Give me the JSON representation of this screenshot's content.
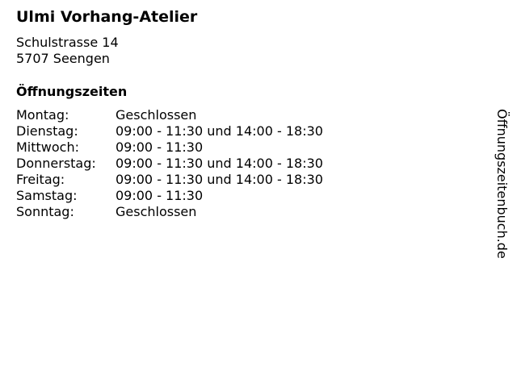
{
  "business": {
    "name": "Ulmi Vorhang-Atelier",
    "street": "Schulstrasse 14",
    "city": "5707 Seengen"
  },
  "hours_heading": "Öffnungszeiten",
  "hours": [
    {
      "day": "Montag:",
      "time": "Geschlossen"
    },
    {
      "day": "Dienstag:",
      "time": "09:00 - 11:30 und 14:00 - 18:30"
    },
    {
      "day": "Mittwoch:",
      "time": "09:00 - 11:30"
    },
    {
      "day": "Donnerstag:",
      "time": "09:00 - 11:30 und 14:00 - 18:30"
    },
    {
      "day": "Freitag:",
      "time": "09:00 - 11:30 und 14:00 - 18:30"
    },
    {
      "day": "Samstag:",
      "time": "09:00 - 11:30"
    },
    {
      "day": "Sonntag:",
      "time": "Geschlossen"
    }
  ],
  "watermark": "Öffnungszeitenbuch.de"
}
